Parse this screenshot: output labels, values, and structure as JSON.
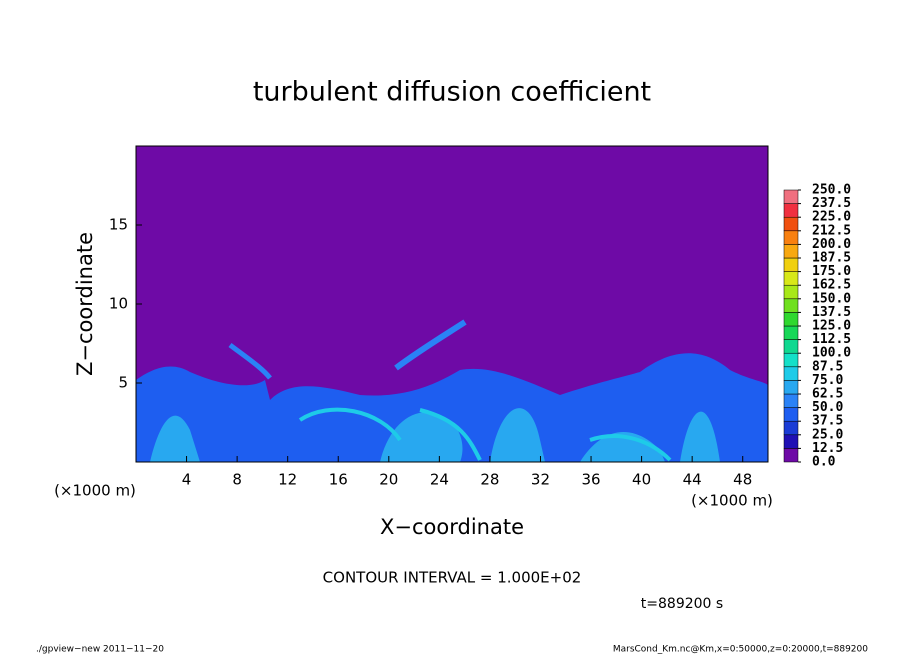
{
  "chart_data": {
    "type": "contour",
    "title": "turbulent diffusion coefficient",
    "xlabel": "X−coordinate",
    "ylabel": "Z−coordinate",
    "x_unit_left": "(×1000 m)",
    "x_unit_right": "(×1000 m)",
    "xlim": [
      0,
      50
    ],
    "ylim": [
      0,
      20
    ],
    "xticks": [
      4,
      8,
      12,
      16,
      20,
      24,
      28,
      32,
      36,
      40,
      44,
      48
    ],
    "yticks": [
      5,
      10,
      15
    ],
    "colorbar_ticks": [
      {
        "value": 0,
        "label": "0.0"
      },
      12.5,
      {
        "value": 25,
        "label": "25.0"
      },
      37.5,
      {
        "value": 50,
        "label": "50.0"
      },
      62.5,
      {
        "value": 75,
        "label": "75.0"
      },
      87.5,
      {
        "value": 100,
        "label": "100.0"
      },
      112.5,
      {
        "value": 125,
        "label": "125.0"
      },
      137.5,
      {
        "value": 150,
        "label": "150.0"
      },
      162.5,
      {
        "value": 175,
        "label": "175.0"
      },
      187.5,
      {
        "value": 200,
        "label": "200.0"
      },
      212.5,
      {
        "value": 225,
        "label": "225.0"
      },
      237.5,
      {
        "value": 250,
        "label": "250.0"
      }
    ],
    "colorbar_colors": [
      "#6e0aa6",
      "#2010b4",
      "#1a3cd6",
      "#1e5ef0",
      "#2a82f6",
      "#28a8f0",
      "#1ecbe8",
      "#14e0c8",
      "#10d890",
      "#18d858",
      "#30d830",
      "#70e020",
      "#a8e818",
      "#d8e818",
      "#f0d010",
      "#f8a810",
      "#f88010",
      "#f05010",
      "#f03040",
      "#f07080"
    ],
    "contour_interval": "CONTOUR INTERVAL = 1.000E+02",
    "time_label": "t=889200 s",
    "footer_left": "./gpview−new  2011−11−20",
    "footer_right": "MarsCond_Km.nc@Km,x=0:50000,z=0:20000,t=889200"
  }
}
